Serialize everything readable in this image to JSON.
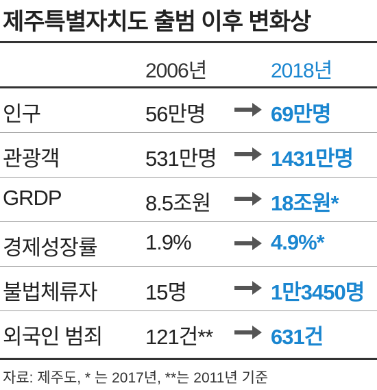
{
  "title": "제주특별자치도 출범 이후 변화상",
  "table": {
    "header": [
      "2006년",
      "2018년"
    ],
    "rows": [
      [
        "인구",
        "56만명",
        "69만명"
      ],
      [
        "관광객",
        "531만명",
        "1431만명"
      ],
      [
        "GRDP",
        "8.5조원",
        "18조원*"
      ],
      [
        "경제성장률",
        "1.9%",
        "4.9%*"
      ],
      [
        "불법체류자",
        "15명",
        "1만3450명"
      ],
      [
        "외국인 범죄",
        "121건**",
        "631건"
      ]
    ]
  },
  "footer": "자료: 제주도, * 는 2017년, **는 2011년 기준"
}
